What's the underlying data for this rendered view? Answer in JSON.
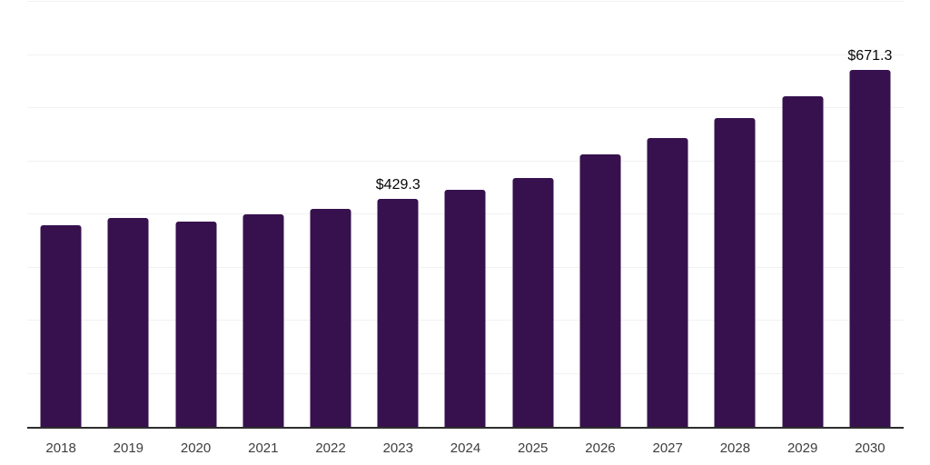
{
  "chart": {
    "background": "#ffffff",
    "bar_color": "#36114E",
    "grid_color": "#f1f1f1",
    "axis_color": "#2d2d2d",
    "tick_label_color": "#3e3e3e",
    "value_label_color": "#060606"
  },
  "chart_data": {
    "type": "bar",
    "title": "",
    "xlabel": "",
    "ylabel": "",
    "categories": [
      "2018",
      "2019",
      "2020",
      "2021",
      "2022",
      "2023",
      "2024",
      "2025",
      "2026",
      "2027",
      "2028",
      "2029",
      "2030"
    ],
    "values": [
      379,
      394,
      386,
      400,
      411,
      429.3,
      447,
      468,
      512,
      543,
      582,
      623,
      671.3
    ],
    "data_labels": [
      "",
      "",
      "",
      "",
      "",
      "$429.3",
      "",
      "",
      "",
      "",
      "",
      "",
      "$671.3"
    ],
    "value_prefix": "$",
    "ylim": [
      0,
      800
    ],
    "gridline_step": 100,
    "grid": "horizontal-only",
    "y_axis_labels_visible": false,
    "legend_position": "none"
  }
}
